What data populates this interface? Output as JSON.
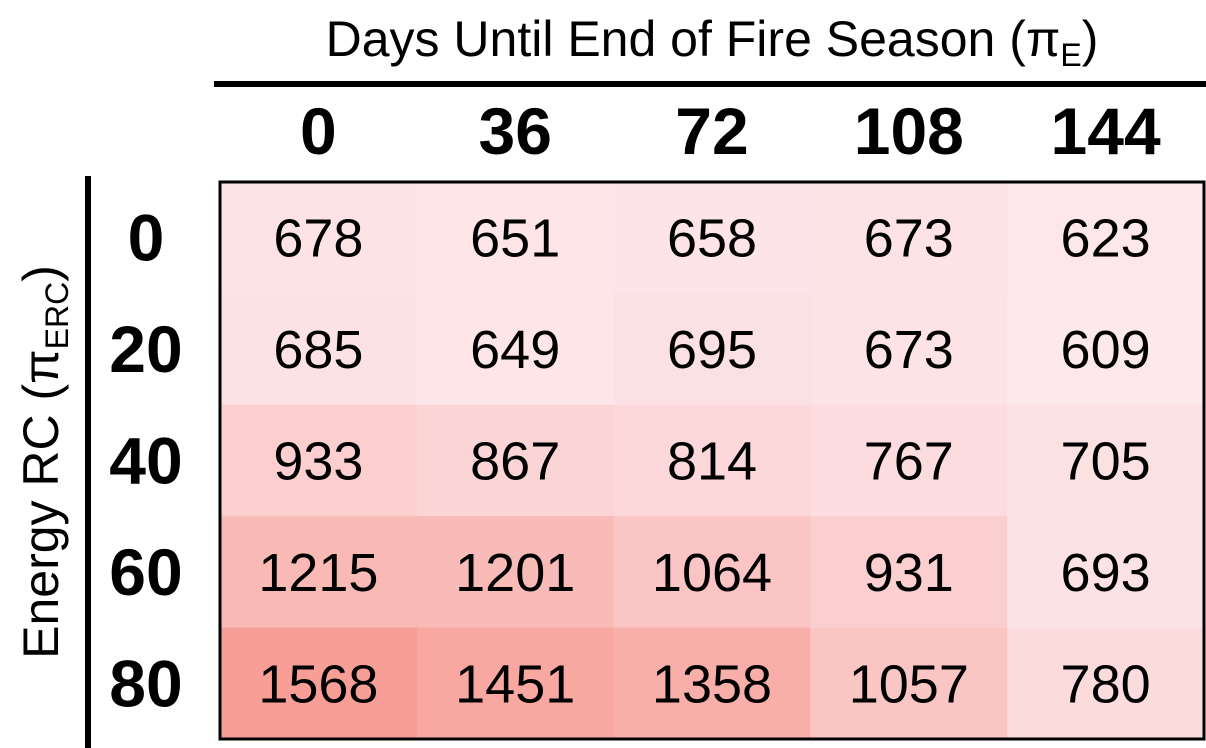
{
  "chart_data": {
    "type": "heatmap",
    "xlabel": {
      "text": "Days Until End of Fire Season (π",
      "sub": "E",
      "close": ")"
    },
    "ylabel": {
      "text": "Energy RC (π",
      "sub": "ERC",
      "close": ")"
    },
    "x_categories": [
      "0",
      "36",
      "72",
      "108",
      "144"
    ],
    "y_categories": [
      "0",
      "20",
      "40",
      "60",
      "80"
    ],
    "values": [
      [
        678,
        651,
        658,
        673,
        623
      ],
      [
        685,
        649,
        695,
        673,
        609
      ],
      [
        933,
        867,
        814,
        767,
        705
      ],
      [
        1215,
        1201,
        1064,
        931,
        693
      ],
      [
        1568,
        1451,
        1358,
        1057,
        780
      ]
    ],
    "colorscale": {
      "low_color": "#fde8ec",
      "high_color": "#f79f97"
    },
    "grid": false,
    "legend": "none"
  }
}
